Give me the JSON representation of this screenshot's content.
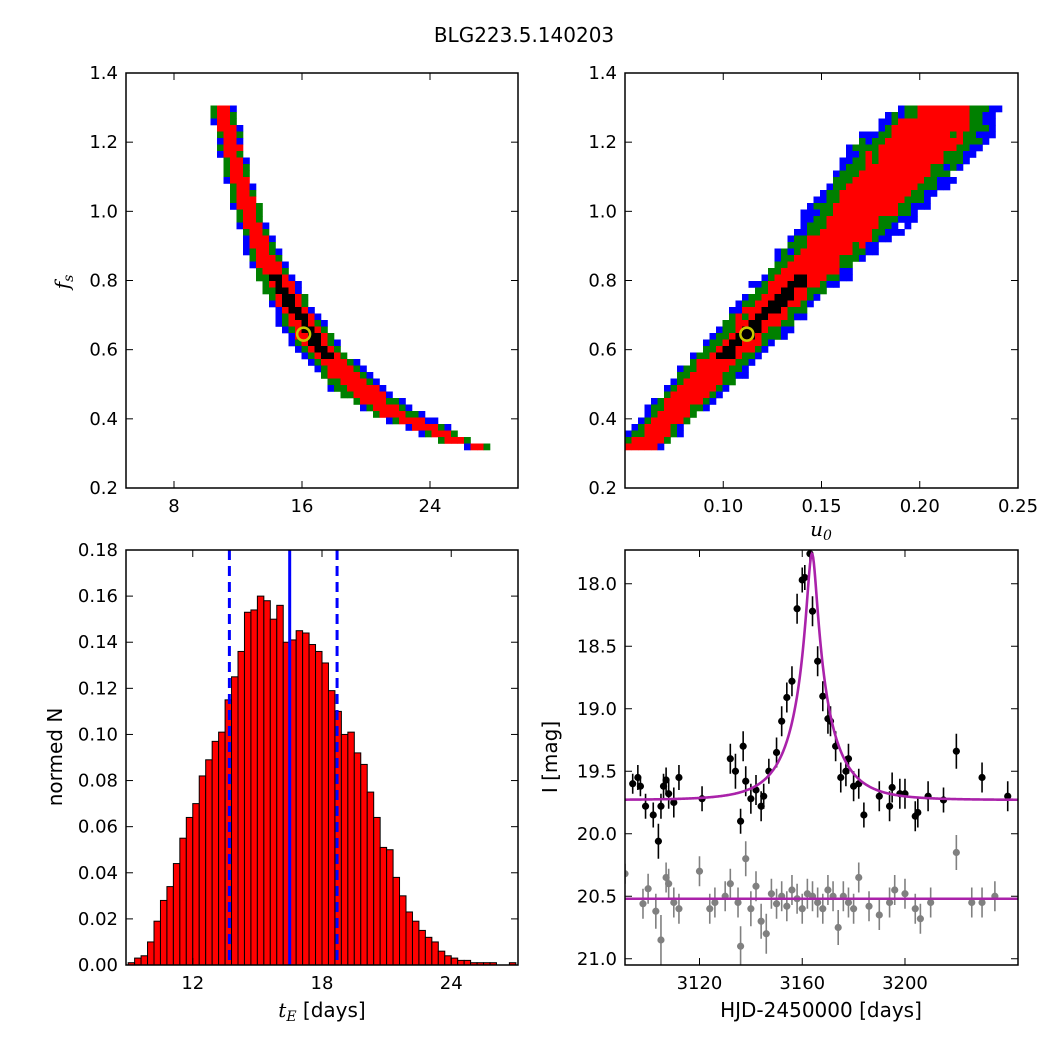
{
  "figure": {
    "title": "BLG223.5.140203"
  },
  "chart_data": [
    {
      "panel": "top-left",
      "type": "heatmap",
      "xlabel": "",
      "ylabel": "f_s",
      "xlim": [
        5,
        29.5
      ],
      "ylim": [
        0.2,
        1.4
      ],
      "xticks": [
        "8",
        "16",
        "24"
      ],
      "xtick_values": [
        8,
        16,
        24
      ],
      "yticks": [
        "0.2",
        "0.4",
        "0.6",
        "0.8",
        "1.0",
        "1.2",
        "1.4"
      ],
      "ytick_values": [
        0.2,
        0.4,
        0.6,
        0.8,
        1.0,
        1.2,
        1.4
      ],
      "region_colors": [
        "#0000ff",
        "#008000",
        "#ff0000",
        "#000000"
      ],
      "best_fit": {
        "x": 16.1,
        "y": 0.645,
        "color": "#c8c800"
      },
      "ridge": [
        [
          11.0,
          1.31
        ],
        [
          12.0,
          1.1
        ],
        [
          13.0,
          0.95
        ],
        [
          14.0,
          0.84
        ],
        [
          15.0,
          0.76
        ],
        [
          16.0,
          0.68
        ],
        [
          17.0,
          0.61
        ],
        [
          18.0,
          0.56
        ],
        [
          19.0,
          0.51
        ],
        [
          20.0,
          0.47
        ],
        [
          21.0,
          0.44
        ],
        [
          22.0,
          0.41
        ],
        [
          23.0,
          0.39
        ],
        [
          24.0,
          0.37
        ],
        [
          25.0,
          0.35
        ],
        [
          26.0,
          0.33
        ],
        [
          27.0,
          0.32
        ]
      ],
      "ridge_halfwidth": [
        0.85,
        0.8,
        0.95,
        1.15,
        1.3,
        1.45,
        1.55,
        1.6,
        1.7,
        1.8,
        1.75,
        1.6,
        1.5,
        1.35,
        1.2,
        1.05,
        0.9
      ]
    },
    {
      "panel": "top-right",
      "type": "heatmap",
      "xlabel": "u_0",
      "ylabel": "",
      "xlim": [
        0.05,
        0.25
      ],
      "ylim": [
        0.2,
        1.4
      ],
      "xticks": [
        "0.10",
        "0.15",
        "0.20",
        "0.25"
      ],
      "xtick_values": [
        0.1,
        0.15,
        0.2,
        0.25
      ],
      "yticks": [
        "0.2",
        "0.4",
        "0.6",
        "0.8",
        "1.0",
        "1.2",
        "1.4"
      ],
      "ytick_values": [
        0.2,
        0.4,
        0.6,
        0.8,
        1.0,
        1.2,
        1.4
      ],
      "region_colors": [
        "#0000ff",
        "#008000",
        "#ff0000",
        "#000000"
      ],
      "best_fit": {
        "x": 0.112,
        "y": 0.645,
        "color": "#c8c800"
      },
      "ridge": [
        [
          0.058,
          0.32
        ],
        [
          0.07,
          0.39
        ],
        [
          0.08,
          0.45
        ],
        [
          0.09,
          0.51
        ],
        [
          0.1,
          0.57
        ],
        [
          0.11,
          0.63
        ],
        [
          0.12,
          0.69
        ],
        [
          0.13,
          0.75
        ],
        [
          0.14,
          0.81
        ],
        [
          0.15,
          0.87
        ],
        [
          0.16,
          0.93
        ],
        [
          0.17,
          0.99
        ],
        [
          0.18,
          1.06
        ],
        [
          0.19,
          1.13
        ],
        [
          0.2,
          1.2
        ],
        [
          0.21,
          1.27
        ],
        [
          0.216,
          1.31
        ]
      ],
      "ridge_halfwidth": [
        0.012,
        0.014,
        0.016,
        0.017,
        0.018,
        0.019,
        0.02,
        0.021,
        0.022,
        0.024,
        0.026,
        0.028,
        0.031,
        0.033,
        0.034,
        0.03,
        0.022
      ]
    },
    {
      "panel": "bottom-left",
      "type": "bar",
      "xlabel": "t_E [days]",
      "ylabel": "normed N",
      "xlim": [
        8.9,
        27.1
      ],
      "ylim": [
        0.0,
        0.18
      ],
      "xticks": [
        "12",
        "18",
        "24"
      ],
      "xtick_values": [
        12,
        18,
        24
      ],
      "yticks": [
        "0.00",
        "0.02",
        "0.04",
        "0.06",
        "0.08",
        "0.10",
        "0.12",
        "0.14",
        "0.16",
        "0.18"
      ],
      "ytick_values": [
        0,
        0.02,
        0.04,
        0.06,
        0.08,
        0.1,
        0.12,
        0.14,
        0.16,
        0.18
      ],
      "bin_start": 9.0,
      "bin_width": 0.3,
      "values": [
        0.001,
        0.003,
        0.004,
        0.01,
        0.019,
        0.028,
        0.034,
        0.044,
        0.055,
        0.064,
        0.07,
        0.082,
        0.089,
        0.097,
        0.101,
        0.115,
        0.125,
        0.136,
        0.153,
        0.154,
        0.16,
        0.158,
        0.15,
        0.156,
        0.14,
        0.141,
        0.145,
        0.144,
        0.139,
        0.136,
        0.131,
        0.119,
        0.11,
        0.1,
        0.101,
        0.092,
        0.087,
        0.075,
        0.064,
        0.051,
        0.05,
        0.038,
        0.03,
        0.023,
        0.019,
        0.015,
        0.012,
        0.01,
        0.006,
        0.004,
        0.003,
        0.002,
        0.002,
        0.001,
        0.001,
        0.001,
        0.001,
        0.0,
        0.0,
        0.001
      ],
      "bar_color": "#ff0000",
      "median": 16.5,
      "bounds": [
        13.7,
        18.7
      ],
      "line_color": "#0000ff"
    },
    {
      "panel": "bottom-right",
      "type": "scatter",
      "xlabel": "HJD-2450000 [days]",
      "ylabel": "I [mag]",
      "xlim": [
        3091,
        3244
      ],
      "ylim": [
        21.05,
        17.73
      ],
      "xticks": [
        "3120",
        "3160",
        "3200"
      ],
      "xtick_values": [
        3120,
        3160,
        3200
      ],
      "yticks": [
        "18.0",
        "18.5",
        "19.0",
        "19.5",
        "20.0",
        "20.5",
        "21.0"
      ],
      "ytick_values": [
        18.0,
        18.5,
        19.0,
        19.5,
        20.0,
        20.5,
        21.0
      ],
      "model": {
        "t0": 3163.8,
        "u0": 0.112,
        "tE": 16.1,
        "fs": 0.645,
        "baseline": 19.73,
        "color": "#aa22aa"
      },
      "residual_baseline": 20.52,
      "series": [
        {
          "name": "",
          "color": "#000000",
          "points": [
            [
              3094,
              19.6,
              0.08
            ],
            [
              3096,
              19.55,
              0.1
            ],
            [
              3097,
              19.62,
              0.08
            ],
            [
              3099,
              19.78,
              0.1
            ],
            [
              3102,
              19.85,
              0.1
            ],
            [
              3104,
              20.06,
              0.14
            ],
            [
              3105,
              19.78,
              0.1
            ],
            [
              3106,
              19.62,
              0.1
            ],
            [
              3107,
              19.57,
              0.1
            ],
            [
              3108,
              19.68,
              0.12
            ],
            [
              3110,
              19.75,
              0.12
            ],
            [
              3112,
              19.55,
              0.1
            ],
            [
              3121,
              19.72,
              0.1
            ],
            [
              3132,
              19.4,
              0.12
            ],
            [
              3134,
              19.5,
              0.14
            ],
            [
              3136,
              19.9,
              0.1
            ],
            [
              3137,
              19.3,
              0.12
            ],
            [
              3138,
              19.58,
              0.12
            ],
            [
              3140,
              19.72,
              0.12
            ],
            [
              3142,
              19.65,
              0.12
            ],
            [
              3144,
              19.78,
              0.12
            ],
            [
              3145,
              19.7,
              0.1
            ],
            [
              3147,
              19.5,
              0.1
            ],
            [
              3150,
              19.35,
              0.12
            ],
            [
              3152,
              19.1,
              0.12
            ],
            [
              3154,
              18.91,
              0.12
            ],
            [
              3156,
              18.78,
              0.12
            ],
            [
              3158,
              18.2,
              0.12
            ],
            [
              3160,
              17.97,
              0.1
            ],
            [
              3161,
              17.95,
              0.1
            ],
            [
              3163,
              17.76,
              0.1
            ],
            [
              3164,
              18.22,
              0.12
            ],
            [
              3166,
              18.62,
              0.12
            ],
            [
              3168,
              18.9,
              0.12
            ],
            [
              3170,
              19.08,
              0.12
            ],
            [
              3171,
              19.1,
              0.12
            ],
            [
              3173,
              19.3,
              0.12
            ],
            [
              3175,
              19.55,
              0.12
            ],
            [
              3177,
              19.5,
              0.12
            ],
            [
              3178,
              19.4,
              0.12
            ],
            [
              3180,
              19.62,
              0.12
            ],
            [
              3182,
              19.6,
              0.12
            ],
            [
              3184,
              19.85,
              0.1
            ],
            [
              3190,
              19.7,
              0.12
            ],
            [
              3194,
              19.78,
              0.12
            ],
            [
              3195,
              19.63,
              0.12
            ],
            [
              3198,
              19.68,
              0.12
            ],
            [
              3200,
              19.68,
              0.12
            ],
            [
              3204,
              19.86,
              0.12
            ],
            [
              3205,
              19.83,
              0.12
            ],
            [
              3209,
              19.7,
              0.12
            ],
            [
              3215,
              19.73,
              0.1
            ],
            [
              3220,
              19.34,
              0.14
            ],
            [
              3230,
              19.55,
              0.12
            ],
            [
              3240,
              19.7,
              0.12
            ]
          ]
        },
        {
          "name": "",
          "color": "#808080",
          "points": [
            [
              3091,
              20.32,
              0.08
            ],
            [
              3098,
              20.56,
              0.12
            ],
            [
              3100,
              20.44,
              0.12
            ],
            [
              3103,
              20.62,
              0.14
            ],
            [
              3105,
              20.85,
              0.2
            ],
            [
              3107,
              20.35,
              0.12
            ],
            [
              3108,
              20.4,
              0.12
            ],
            [
              3110,
              20.55,
              0.12
            ],
            [
              3112,
              20.6,
              0.12
            ],
            [
              3120,
              20.3,
              0.12
            ],
            [
              3124,
              20.6,
              0.12
            ],
            [
              3126,
              20.55,
              0.12
            ],
            [
              3130,
              20.5,
              0.12
            ],
            [
              3132,
              20.4,
              0.12
            ],
            [
              3135,
              20.55,
              0.12
            ],
            [
              3136,
              20.9,
              0.16
            ],
            [
              3138,
              20.2,
              0.14
            ],
            [
              3140,
              20.6,
              0.14
            ],
            [
              3142,
              20.42,
              0.12
            ],
            [
              3144,
              20.7,
              0.14
            ],
            [
              3146,
              20.8,
              0.16
            ],
            [
              3148,
              20.48,
              0.12
            ],
            [
              3150,
              20.56,
              0.12
            ],
            [
              3152,
              20.5,
              0.12
            ],
            [
              3154,
              20.58,
              0.12
            ],
            [
              3156,
              20.45,
              0.12
            ],
            [
              3158,
              20.52,
              0.12
            ],
            [
              3160,
              20.6,
              0.12
            ],
            [
              3162,
              20.48,
              0.12
            ],
            [
              3164,
              20.5,
              0.12
            ],
            [
              3166,
              20.55,
              0.12
            ],
            [
              3168,
              20.6,
              0.12
            ],
            [
              3170,
              20.45,
              0.12
            ],
            [
              3172,
              20.5,
              0.12
            ],
            [
              3174,
              20.75,
              0.14
            ],
            [
              3176,
              20.5,
              0.12
            ],
            [
              3178,
              20.55,
              0.12
            ],
            [
              3180,
              20.6,
              0.12
            ],
            [
              3182,
              20.35,
              0.12
            ],
            [
              3186,
              20.58,
              0.12
            ],
            [
              3190,
              20.65,
              0.12
            ],
            [
              3194,
              20.55,
              0.12
            ],
            [
              3196,
              20.45,
              0.12
            ],
            [
              3200,
              20.48,
              0.12
            ],
            [
              3204,
              20.6,
              0.12
            ],
            [
              3206,
              20.68,
              0.12
            ],
            [
              3210,
              20.55,
              0.12
            ],
            [
              3220,
              20.15,
              0.14
            ],
            [
              3226,
              20.55,
              0.12
            ],
            [
              3230,
              20.55,
              0.12
            ],
            [
              3235,
              20.5,
              0.12
            ]
          ]
        }
      ]
    }
  ]
}
